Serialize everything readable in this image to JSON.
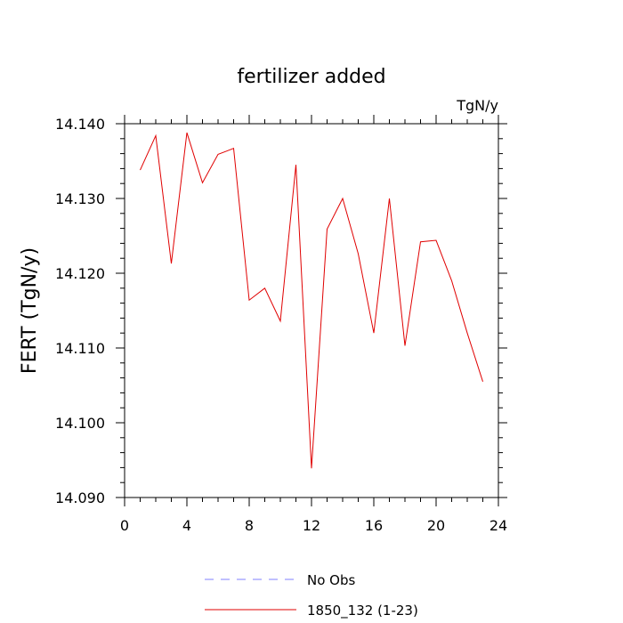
{
  "chart_data": {
    "type": "line",
    "title": "fertilizer added",
    "units_label": "TgN/y",
    "ylabel": "FERT  (TgN/y)",
    "xlabel": "",
    "xlim": [
      0,
      24
    ],
    "ylim": [
      14.09,
      14.14
    ],
    "x_ticks": [
      "0",
      "4",
      "8",
      "12",
      "16",
      "20",
      "24"
    ],
    "y_ticks": [
      "14.090",
      "14.100",
      "14.110",
      "14.120",
      "14.130",
      "14.140"
    ],
    "grid": false,
    "legend_position": "bottom-center",
    "series": [
      {
        "name": "1850_132 (1-23)",
        "color": "#e00000",
        "style": "solid",
        "x": [
          1,
          2,
          3,
          4,
          5,
          6,
          7,
          8,
          9,
          10,
          11,
          12,
          13,
          14,
          15,
          16,
          17,
          18,
          19,
          20,
          21,
          22,
          23
        ],
        "values": [
          14.1338,
          14.1384,
          14.1213,
          14.1388,
          14.1321,
          14.1359,
          14.1367,
          14.1164,
          14.118,
          14.1136,
          14.1345,
          14.0939,
          14.1259,
          14.13,
          14.1226,
          14.112,
          14.13,
          14.1103,
          14.1242,
          14.1244,
          14.119,
          14.112,
          14.1055
        ]
      },
      {
        "name": "No Obs",
        "color": "#8080ff",
        "style": "dashed",
        "x": [],
        "values": []
      }
    ]
  }
}
